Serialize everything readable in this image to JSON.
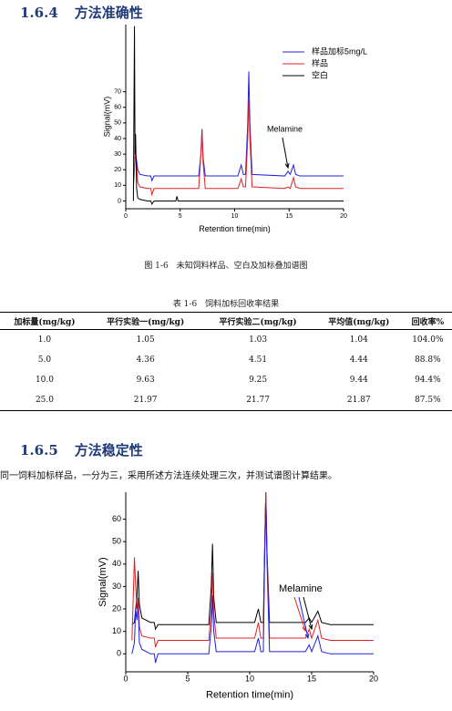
{
  "section1": {
    "number": "1.6.4",
    "title": "方法准确性"
  },
  "figure_caption": "图 1-6　未知饲料样品、空白及加标叠加谱图",
  "table": {
    "caption": "表 1-6　饲料加标回收率结果",
    "header": [
      "加标量(mg/kg)",
      "平行实验一(mg/kg)",
      "平行实验二(mg/kg)",
      "平均值(mg/kg)",
      "回收率%"
    ],
    "rows": [
      [
        "1.0",
        "1.05",
        "1.03",
        "1.04",
        "104.0%"
      ],
      [
        "5.0",
        "4.36",
        "4.51",
        "4.44",
        "88.8%"
      ],
      [
        "10.0",
        "9.63",
        "9.25",
        "9.44",
        "94.4%"
      ],
      [
        "25.0",
        "21.97",
        "21.77",
        "21.87",
        "87.5%"
      ]
    ]
  },
  "section2": {
    "number": "1.6.5",
    "title": "方法稳定性",
    "paragraph": "同一饲料加标样品，一分为三，采用所述方法连续处理三次，并测试谱图计算结果。"
  },
  "chart_data": [
    {
      "type": "line",
      "xlabel": "Retention time(min)",
      "ylabel": "Signal(mV)",
      "annotation": "Melamine",
      "legend": "upper right",
      "xlim": [
        0,
        20
      ],
      "ylim": [
        -5,
        113
      ],
      "xticks": [
        0,
        5,
        10,
        15,
        20
      ],
      "yticks": [
        0,
        10,
        20,
        30,
        40,
        50,
        60,
        70
      ],
      "x": [
        0,
        0.5,
        0.7,
        0.8,
        0.85,
        0.9,
        1.0,
        1.1,
        1.3,
        2.0,
        2.3,
        2.4,
        2.6,
        4.6,
        4.7,
        4.8,
        6.7,
        6.9,
        7.0,
        7.1,
        7.3,
        10.3,
        10.6,
        10.8,
        11.0,
        11.2,
        11.3,
        11.4,
        11.6,
        14.6,
        14.9,
        15.1,
        15.4,
        15.6,
        16,
        20
      ],
      "series": [
        {
          "name": "样品加标5mg/L",
          "color": "#2020e0",
          "values": [
            null,
            null,
            16,
            22,
            28,
            30,
            26,
            20,
            17,
            16,
            16,
            13,
            16,
            16,
            16,
            16,
            16,
            30,
            46,
            28,
            16,
            16,
            23,
            17,
            17,
            50,
            83,
            50,
            17,
            16,
            19,
            17,
            23,
            17,
            16,
            16
          ]
        },
        {
          "name": "样品",
          "color": "#e02020",
          "values": [
            null,
            null,
            8,
            20,
            35,
            30,
            22,
            12,
            9,
            8,
            8,
            4,
            8,
            8,
            8,
            8,
            8,
            30,
            46,
            25,
            8,
            8,
            14,
            9,
            9,
            40,
            65,
            40,
            9,
            8,
            9,
            8,
            15,
            9,
            8,
            8
          ]
        },
        {
          "name": "空白",
          "color": "#000000",
          "values": [
            null,
            null,
            0,
            112,
            30,
            43,
            8,
            2,
            1,
            0,
            0,
            -2,
            0,
            0,
            3,
            0,
            0,
            0,
            0,
            0,
            0,
            0,
            0,
            0,
            0,
            0,
            0,
            0,
            0,
            0,
            0,
            0,
            0,
            0,
            0,
            0
          ]
        }
      ]
    },
    {
      "type": "line",
      "xlabel": "Retention time(min)",
      "ylabel": "Signal(mV)",
      "annotation": "Melamine",
      "xlim": [
        0,
        20
      ],
      "ylim": [
        -8,
        72
      ],
      "xticks": [
        0,
        5,
        10,
        15,
        20
      ],
      "yticks": [
        0,
        10,
        20,
        30,
        40,
        50,
        60
      ],
      "x": [
        0.5,
        0.7,
        0.8,
        0.9,
        1.0,
        1.1,
        1.3,
        2.0,
        2.3,
        2.4,
        2.6,
        6.7,
        6.9,
        7.0,
        7.1,
        7.3,
        10.4,
        10.7,
        10.9,
        11.1,
        11.2,
        11.3,
        11.4,
        11.6,
        14.5,
        14.8,
        15.0,
        15.5,
        15.8,
        16.5,
        20
      ],
      "series": [
        {
          "color": "#000000",
          "values": [
            13,
            14,
            20,
            25,
            37,
            22,
            16,
            14,
            14,
            11,
            13,
            13,
            30,
            49,
            25,
            14,
            14,
            20,
            14,
            14,
            45,
            72,
            45,
            14,
            14,
            16,
            14,
            19,
            14,
            13,
            13
          ]
        },
        {
          "color": "#e02020",
          "values": [
            6,
            43,
            30,
            20,
            25,
            12,
            8,
            7,
            7,
            3,
            6,
            6,
            20,
            36,
            18,
            7,
            7,
            14,
            7,
            7,
            45,
            72,
            45,
            7,
            7,
            11,
            7,
            15,
            7,
            6,
            6
          ]
        },
        {
          "color": "#2020e0",
          "values": [
            0,
            5,
            20,
            15,
            22,
            5,
            2,
            0,
            0,
            -4,
            0,
            0,
            12,
            26,
            10,
            1,
            1,
            7,
            1,
            1,
            40,
            67,
            40,
            1,
            1,
            4,
            1,
            8,
            1,
            0,
            0
          ]
        }
      ]
    }
  ]
}
